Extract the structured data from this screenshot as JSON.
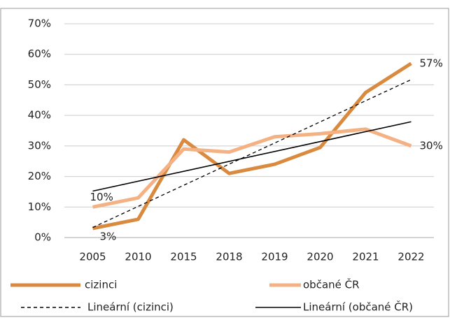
{
  "chart_data": {
    "type": "line",
    "categories": [
      "2005",
      "2010",
      "2015",
      "2018",
      "2019",
      "2020",
      "2021",
      "2022"
    ],
    "series": [
      {
        "name": "cizinci",
        "color": "#d98a3e",
        "values": [
          3,
          6,
          32,
          21,
          24,
          29.5,
          47.5,
          57
        ],
        "value_labels": [
          "3%",
          null,
          null,
          null,
          null,
          null,
          null,
          "57%"
        ]
      },
      {
        "name": "občané ČR",
        "color": "#f4b183",
        "values": [
          10,
          13,
          29,
          28,
          33,
          34,
          35.5,
          30
        ],
        "value_labels": [
          "10%",
          null,
          null,
          null,
          null,
          null,
          null,
          "30%"
        ]
      }
    ],
    "trendlines": [
      {
        "name": "Lineární (cizinci)",
        "series": 0,
        "dash": true
      },
      {
        "name": "Lineární (občané ČR)",
        "series": 1,
        "dash": false
      }
    ],
    "ylim": [
      0,
      70
    ],
    "yticks": [
      {
        "value": 0,
        "label": "0%"
      },
      {
        "value": 10,
        "label": "10%"
      },
      {
        "value": 20,
        "label": "20%"
      },
      {
        "value": 30,
        "label": "30%"
      },
      {
        "value": 40,
        "label": "40%"
      },
      {
        "value": 50,
        "label": "50%"
      },
      {
        "value": 60,
        "label": "60%"
      },
      {
        "value": 70,
        "label": "70%"
      }
    ],
    "grid": true,
    "legend": "bottom"
  }
}
